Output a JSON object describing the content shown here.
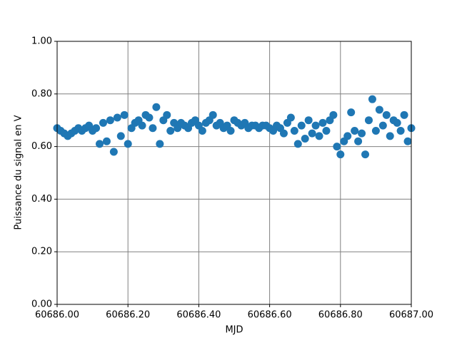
{
  "chart_data": {
    "type": "scatter",
    "xlabel": "MJD",
    "ylabel": "Puissance du signal en V",
    "color": "#1f77b4",
    "grid": true,
    "xlim": [
      60686.0,
      60687.0
    ],
    "xticks": [
      {
        "value": 60686.0,
        "label": "60686.00"
      },
      {
        "value": 60686.2,
        "label": "60686.20"
      },
      {
        "value": 60686.4,
        "label": "60686.40"
      },
      {
        "value": 60686.6,
        "label": "60686.60"
      },
      {
        "value": 60686.8,
        "label": "60686.80"
      },
      {
        "value": 60687.0,
        "label": "60687.00"
      }
    ],
    "ylim": [
      0,
      1
    ],
    "yticks": [
      {
        "value": 0,
        "label": "0.00"
      },
      {
        "value": 0.2,
        "label": "0.20"
      },
      {
        "value": 0.4,
        "label": "0.40"
      },
      {
        "value": 0.6,
        "label": "0.60"
      },
      {
        "value": 0.8,
        "label": "0.80"
      },
      {
        "value": 1,
        "label": "1.00"
      }
    ],
    "x": [
      60686.0,
      60686.01,
      60686.02,
      60686.03,
      60686.04,
      60686.05,
      60686.06,
      60686.07,
      60686.08,
      60686.09,
      60686.1,
      60686.11,
      60686.12,
      60686.13,
      60686.14,
      60686.15,
      60686.16,
      60686.17,
      60686.18,
      60686.19,
      60686.2,
      60686.21,
      60686.22,
      60686.23,
      60686.24,
      60686.25,
      60686.26,
      60686.27,
      60686.28,
      60686.29,
      60686.3,
      60686.31,
      60686.32,
      60686.33,
      60686.34,
      60686.35,
      60686.36,
      60686.37,
      60686.38,
      60686.39,
      60686.4,
      60686.41,
      60686.42,
      60686.43,
      60686.44,
      60686.45,
      60686.46,
      60686.47,
      60686.48,
      60686.49,
      60686.5,
      60686.51,
      60686.52,
      60686.53,
      60686.54,
      60686.55,
      60686.56,
      60686.57,
      60686.58,
      60686.59,
      60686.6,
      60686.61,
      60686.62,
      60686.63,
      60686.64,
      60686.65,
      60686.66,
      60686.67,
      60686.68,
      60686.69,
      60686.7,
      60686.71,
      60686.72,
      60686.73,
      60686.74,
      60686.75,
      60686.76,
      60686.77,
      60686.78,
      60686.79,
      60686.8,
      60686.81,
      60686.82,
      60686.83,
      60686.84,
      60686.85,
      60686.86,
      60686.87,
      60686.88,
      60686.89,
      60686.9,
      60686.91,
      60686.92,
      60686.93,
      60686.94,
      60686.95,
      60686.96,
      60686.97,
      60686.98,
      60686.99,
      60687.0
    ],
    "values": [
      0.67,
      0.66,
      0.65,
      0.64,
      0.65,
      0.66,
      0.67,
      0.66,
      0.67,
      0.68,
      0.66,
      0.67,
      0.61,
      0.69,
      0.62,
      0.7,
      0.58,
      0.71,
      0.64,
      0.72,
      0.61,
      0.67,
      0.69,
      0.7,
      0.68,
      0.72,
      0.71,
      0.67,
      0.75,
      0.61,
      0.7,
      0.72,
      0.66,
      0.69,
      0.67,
      0.69,
      0.68,
      0.67,
      0.69,
      0.7,
      0.68,
      0.66,
      0.69,
      0.7,
      0.72,
      0.68,
      0.69,
      0.67,
      0.68,
      0.66,
      0.7,
      0.69,
      0.68,
      0.69,
      0.67,
      0.68,
      0.68,
      0.67,
      0.68,
      0.68,
      0.67,
      0.66,
      0.68,
      0.67,
      0.65,
      0.69,
      0.71,
      0.66,
      0.61,
      0.68,
      0.63,
      0.7,
      0.65,
      0.68,
      0.64,
      0.69,
      0.66,
      0.7,
      0.72,
      0.6,
      0.57,
      0.62,
      0.64,
      0.73,
      0.66,
      0.62,
      0.65,
      0.57,
      0.7,
      0.78,
      0.66,
      0.74,
      0.68,
      0.72,
      0.64,
      0.7,
      0.69,
      0.66,
      0.72,
      0.62,
      0.67
    ]
  }
}
